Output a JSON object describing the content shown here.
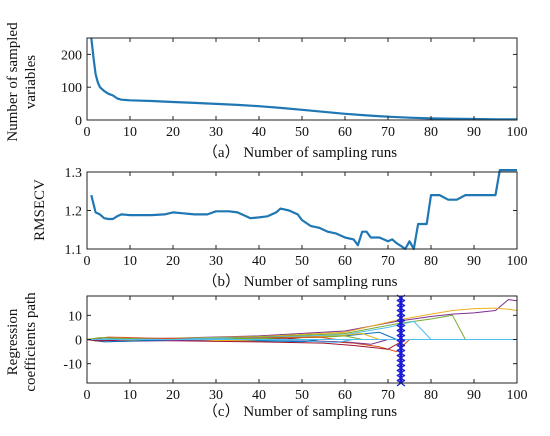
{
  "chart_data": [
    {
      "type": "line",
      "caption": "（a） Number of sampling runs",
      "ylabel_lines": [
        "Number of sampled",
        "variables"
      ],
      "xlim": [
        0,
        100
      ],
      "ylim": [
        0,
        250
      ],
      "xticks": [
        0,
        10,
        20,
        30,
        40,
        50,
        60,
        70,
        80,
        90,
        100
      ],
      "yticks": [
        0,
        100,
        200
      ],
      "grid": false,
      "color": "#1f77b4",
      "series": [
        {
          "x": [
            1,
            1.5,
            2,
            2.5,
            3,
            4,
            5,
            6,
            7,
            8,
            10,
            15,
            20,
            25,
            30,
            35,
            40,
            45,
            50,
            55,
            60,
            65,
            70,
            75,
            80,
            85,
            90,
            95,
            100
          ],
          "values": [
            250,
            190,
            140,
            115,
            100,
            88,
            80,
            75,
            66,
            62,
            60,
            58,
            55,
            52,
            49,
            46,
            42,
            37,
            31,
            25,
            19,
            14,
            10,
            7,
            5,
            4,
            3,
            2,
            2
          ]
        }
      ]
    },
    {
      "type": "line",
      "caption": "（b） Number of sampling runs",
      "ylabel": "RMSECV",
      "xlim": [
        0,
        100
      ],
      "ylim": [
        1.1,
        1.3
      ],
      "xticks": [
        0,
        10,
        20,
        30,
        40,
        50,
        60,
        70,
        80,
        90,
        100
      ],
      "yticks": [
        1.1,
        1.2,
        1.3
      ],
      "grid": false,
      "color": "#1f77b4",
      "series": [
        {
          "x": [
            1,
            2,
            3,
            4,
            5,
            6,
            7,
            8,
            10,
            12,
            15,
            18,
            20,
            22,
            25,
            28,
            30,
            33,
            35,
            37,
            38,
            40,
            42,
            44,
            45,
            47,
            49,
            50,
            52,
            54,
            56,
            58,
            60,
            62,
            63,
            64,
            65,
            66,
            68,
            70,
            71,
            72,
            73,
            74,
            75,
            76,
            77,
            79,
            80,
            82,
            84,
            86,
            88,
            90,
            92,
            94,
            95,
            96,
            98,
            100
          ],
          "values": [
            1.24,
            1.195,
            1.19,
            1.18,
            1.178,
            1.178,
            1.185,
            1.19,
            1.188,
            1.188,
            1.188,
            1.19,
            1.195,
            1.193,
            1.19,
            1.19,
            1.198,
            1.198,
            1.195,
            1.185,
            1.18,
            1.182,
            1.185,
            1.195,
            1.205,
            1.2,
            1.19,
            1.175,
            1.16,
            1.155,
            1.145,
            1.14,
            1.13,
            1.125,
            1.11,
            1.145,
            1.145,
            1.13,
            1.13,
            1.12,
            1.125,
            1.115,
            1.108,
            1.1,
            1.12,
            1.1,
            1.165,
            1.165,
            1.24,
            1.24,
            1.228,
            1.228,
            1.24,
            1.24,
            1.24,
            1.24,
            1.24,
            1.305,
            1.305,
            1.305
          ]
        }
      ]
    },
    {
      "type": "line",
      "caption": "（c） Number of sampling runs",
      "ylabel_lines": [
        "Regression",
        "coefficients path"
      ],
      "xlim": [
        0,
        100
      ],
      "ylim": [
        -18,
        18
      ],
      "xticks": [
        0,
        10,
        20,
        30,
        40,
        50,
        60,
        70,
        80,
        90,
        100
      ],
      "yticks": [
        -10,
        0,
        10
      ],
      "grid": false,
      "marker": {
        "x": 73,
        "color": "#1a1ad6"
      },
      "series": [
        {
          "color": "#7e2f8e",
          "x": [
            0,
            20,
            40,
            60,
            72,
            80,
            85,
            90,
            95,
            98,
            100
          ],
          "values": [
            0,
            0.6,
            1.5,
            3.5,
            7.5,
            9.5,
            10.5,
            11,
            12,
            16.5,
            16
          ]
        },
        {
          "color": "#edb120",
          "x": [
            0,
            20,
            40,
            60,
            72,
            80,
            85,
            90,
            95,
            98,
            100
          ],
          "values": [
            0,
            0.5,
            1.2,
            3,
            8,
            10.5,
            12,
            12.8,
            13,
            12.5,
            12
          ]
        },
        {
          "color": "#77ac30",
          "x": [
            0,
            20,
            40,
            60,
            72,
            80,
            85,
            88
          ],
          "values": [
            0,
            0.4,
            1,
            2.5,
            6.5,
            8.5,
            10,
            0
          ]
        },
        {
          "color": "#4dbeee",
          "x": [
            0,
            20,
            40,
            60,
            70,
            76,
            80
          ],
          "values": [
            0,
            0.3,
            0.8,
            2,
            5,
            7.5,
            0
          ]
        },
        {
          "color": "#d95319",
          "x": [
            0,
            20,
            40,
            55,
            62,
            68,
            72,
            75
          ],
          "values": [
            0,
            -0.3,
            -0.6,
            -0.8,
            -1.5,
            -3,
            -5,
            0
          ]
        },
        {
          "color": "#a2142f",
          "x": [
            0,
            20,
            40,
            55,
            62,
            70,
            74
          ],
          "values": [
            0,
            -0.5,
            -1,
            -1.5,
            -2.5,
            -4,
            0
          ]
        },
        {
          "color": "#0072bd",
          "x": [
            0,
            20,
            40,
            60,
            68,
            72
          ],
          "values": [
            0,
            0.2,
            0.5,
            1.5,
            3,
            0
          ]
        },
        {
          "color": "#7e2f8e",
          "x": [
            0,
            30,
            50,
            60,
            66,
            70
          ],
          "values": [
            0,
            -0.2,
            -0.5,
            -1,
            -2,
            0
          ]
        },
        {
          "color": "#edb120",
          "x": [
            0,
            30,
            50,
            58,
            64,
            68
          ],
          "values": [
            0,
            0.3,
            1,
            1.5,
            2.5,
            0
          ]
        },
        {
          "color": "#77ac30",
          "x": [
            0,
            30,
            45,
            55,
            60,
            64
          ],
          "values": [
            0,
            0.2,
            0.6,
            1,
            1.5,
            0
          ]
        },
        {
          "color": "#4dbeee",
          "x": [
            0,
            30,
            45,
            52,
            58,
            62
          ],
          "values": [
            0,
            -0.2,
            -0.4,
            -0.8,
            -1.2,
            0
          ]
        },
        {
          "color": "#d95319",
          "x": [
            0,
            25,
            40,
            48,
            54,
            58
          ],
          "values": [
            0,
            0.3,
            0.6,
            0.8,
            1,
            0
          ]
        },
        {
          "color": "#0072bd",
          "x": [
            0,
            25,
            40,
            46,
            50,
            54
          ],
          "values": [
            0,
            -0.2,
            -0.5,
            -0.7,
            -0.9,
            0
          ]
        },
        {
          "color": "#a2142f",
          "x": [
            0,
            20,
            35,
            42,
            46,
            50
          ],
          "values": [
            0,
            0.2,
            0.4,
            0.5,
            0.6,
            0
          ]
        },
        {
          "color": "#77ac30",
          "x": [
            0,
            20,
            30,
            38,
            42,
            46
          ],
          "values": [
            0,
            0.3,
            0.4,
            0.4,
            0.4,
            0
          ]
        },
        {
          "color": "#edb120",
          "x": [
            0,
            15,
            25,
            33,
            37,
            40
          ],
          "values": [
            0,
            -0.3,
            -0.4,
            -0.4,
            -0.3,
            0
          ]
        },
        {
          "color": "#4dbeee",
          "x": [
            0,
            10,
            20,
            28,
            32,
            35
          ],
          "values": [
            0,
            0.5,
            0.4,
            0.3,
            0.3,
            0
          ]
        },
        {
          "color": "#7e2f8e",
          "x": [
            0,
            8,
            15,
            22,
            27,
            30
          ],
          "values": [
            0,
            -0.8,
            -0.6,
            -0.4,
            -0.3,
            0
          ]
        },
        {
          "color": "#d95319",
          "x": [
            0,
            5,
            10,
            16,
            21,
            25
          ],
          "values": [
            0,
            1,
            0.8,
            0.5,
            0.3,
            0
          ]
        },
        {
          "color": "#0072bd",
          "x": [
            0,
            4,
            8,
            12,
            16,
            20
          ],
          "values": [
            0,
            -1,
            -0.8,
            -0.5,
            -0.3,
            0
          ]
        },
        {
          "color": "#77ac30",
          "x": [
            0,
            3,
            6,
            9,
            12,
            15
          ],
          "values": [
            0,
            0.8,
            0.6,
            0.4,
            0.2,
            0
          ]
        },
        {
          "color": "#a2142f",
          "x": [
            0,
            2,
            4,
            6,
            8,
            10
          ],
          "values": [
            0,
            -0.6,
            -0.5,
            -0.3,
            -0.2,
            0
          ]
        },
        {
          "color": "#4dbeee",
          "x": [
            0,
            20,
            40,
            60,
            80,
            100
          ],
          "values": [
            0,
            0,
            0,
            0,
            0,
            0
          ]
        }
      ]
    }
  ]
}
